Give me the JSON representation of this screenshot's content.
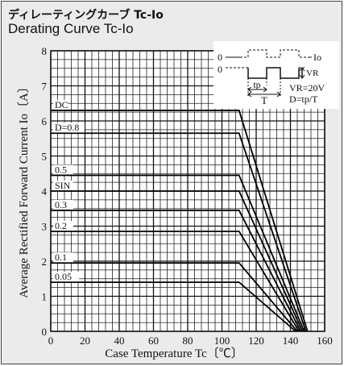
{
  "title_jp": "ディレーティングカーブ Tc-Io",
  "title_en": "Derating Curve Tc-Io",
  "inset": {
    "io_label": "Io",
    "zero_label_top": "0",
    "zero_label_bottom": "0",
    "vr_label": "VR",
    "tp_label": "tp",
    "t_label": "T",
    "vr_condition": "VR=20V",
    "duty_formula": "D=tp/T"
  },
  "chart_data": {
    "type": "line",
    "xlabel": "Case Temperature Tc〔℃〕",
    "ylabel": "Average Rectified Forward Current Io〔A〕",
    "xlim": [
      0,
      160
    ],
    "ylim": [
      0,
      8
    ],
    "xticks": [
      0,
      20,
      40,
      60,
      80,
      100,
      120,
      140,
      160
    ],
    "yticks": [
      0,
      1,
      2,
      3,
      4,
      5,
      6,
      7,
      8
    ],
    "grid": true,
    "series": [
      {
        "name": "DC",
        "x": [
          0,
          110,
          150
        ],
        "y": [
          6.3,
          6.3,
          0
        ]
      },
      {
        "name": "D=0.8",
        "x": [
          0,
          110,
          149
        ],
        "y": [
          5.65,
          5.65,
          0
        ]
      },
      {
        "name": "0.5",
        "x": [
          0,
          110,
          148
        ],
        "y": [
          4.45,
          4.45,
          0
        ]
      },
      {
        "name": "SIN",
        "x": [
          0,
          110,
          147
        ],
        "y": [
          4.0,
          4.0,
          0
        ]
      },
      {
        "name": "0.3",
        "x": [
          0,
          110,
          146
        ],
        "y": [
          3.45,
          3.45,
          0
        ]
      },
      {
        "name": "0.2",
        "x": [
          0,
          110,
          145
        ],
        "y": [
          2.85,
          2.85,
          0
        ]
      },
      {
        "name": "0.1",
        "x": [
          0,
          110,
          144
        ],
        "y": [
          1.95,
          1.95,
          0
        ]
      },
      {
        "name": "0.05",
        "x": [
          0,
          110,
          143
        ],
        "y": [
          1.4,
          1.4,
          0
        ]
      }
    ]
  }
}
